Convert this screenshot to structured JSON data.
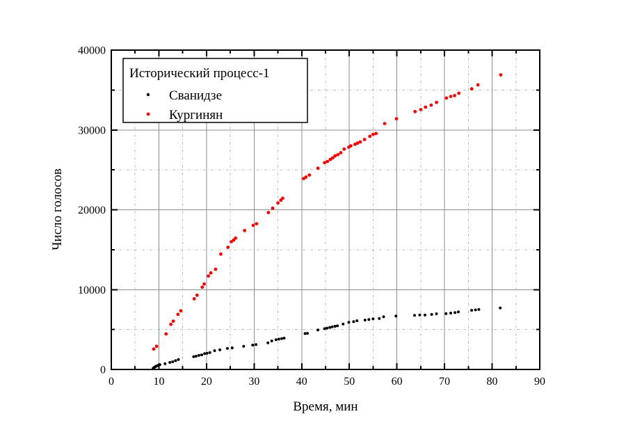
{
  "chart_data": {
    "type": "scatter",
    "legend_title": "Исторический процесс-1",
    "xlabel": "Время, мин",
    "ylabel": "Число голосов",
    "xlim": [
      0,
      90
    ],
    "ylim": [
      0,
      40000
    ],
    "x_major_step": 10,
    "x_minor_step": 5,
    "y_major_step": 10000,
    "y_minor_step": 5000,
    "x_tick_labels": [
      "0",
      "10",
      "20",
      "30",
      "40",
      "50",
      "60",
      "70",
      "80",
      "90"
    ],
    "y_tick_labels": [
      "0",
      "10000",
      "20000",
      "30000",
      "40000"
    ],
    "grid": {
      "on": true,
      "major_color": "#8c8c8c",
      "minor_color": "#c0c0c0",
      "minor_dash": "4 3 1 3"
    },
    "frame_color": "#000000",
    "legend_position": "top-left",
    "series": [
      {
        "name": "Сванидзе",
        "color": "#000000",
        "marker": "circle",
        "marker_radius": 2.0,
        "points": [
          [
            8.8,
            150
          ],
          [
            9.0,
            250
          ],
          [
            9.2,
            330
          ],
          [
            9.4,
            400
          ],
          [
            9.6,
            460
          ],
          [
            9.9,
            520
          ],
          [
            10.2,
            600
          ],
          [
            11.3,
            720
          ],
          [
            12.3,
            880
          ],
          [
            12.9,
            960
          ],
          [
            13.5,
            1100
          ],
          [
            14.1,
            1250
          ],
          [
            17.3,
            1600
          ],
          [
            17.8,
            1660
          ],
          [
            18.4,
            1770
          ],
          [
            19.0,
            1830
          ],
          [
            19.6,
            1980
          ],
          [
            20.1,
            2030
          ],
          [
            20.7,
            2120
          ],
          [
            21.7,
            2350
          ],
          [
            22.8,
            2470
          ],
          [
            24.4,
            2640
          ],
          [
            25.4,
            2700
          ],
          [
            27.8,
            2900
          ],
          [
            29.7,
            3050
          ],
          [
            30.4,
            3110
          ],
          [
            32.9,
            3340
          ],
          [
            33.7,
            3570
          ],
          [
            34.6,
            3720
          ],
          [
            35.2,
            3800
          ],
          [
            35.8,
            3870
          ],
          [
            36.3,
            3920
          ],
          [
            40.7,
            4500
          ],
          [
            41.2,
            4520
          ],
          [
            43.4,
            4940
          ],
          [
            44.8,
            5110
          ],
          [
            45.3,
            5180
          ],
          [
            45.9,
            5260
          ],
          [
            46.4,
            5330
          ],
          [
            47.0,
            5400
          ],
          [
            47.5,
            5460
          ],
          [
            48.7,
            5690
          ],
          [
            49.9,
            5900
          ],
          [
            50.9,
            5990
          ],
          [
            51.6,
            6100
          ],
          [
            53.3,
            6190
          ],
          [
            54.1,
            6250
          ],
          [
            55.0,
            6340
          ],
          [
            56.3,
            6390
          ],
          [
            57.2,
            6600
          ],
          [
            59.8,
            6690
          ],
          [
            63.7,
            6770
          ],
          [
            64.8,
            6820
          ],
          [
            65.9,
            6820
          ],
          [
            67.3,
            6890
          ],
          [
            68.3,
            6970
          ],
          [
            70.3,
            7000
          ],
          [
            71.3,
            7060
          ],
          [
            72.2,
            7120
          ],
          [
            72.9,
            7210
          ],
          [
            75.7,
            7410
          ],
          [
            76.5,
            7460
          ],
          [
            77.2,
            7520
          ],
          [
            81.7,
            7700
          ]
        ]
      },
      {
        "name": "Кургинян",
        "color": "#ff0000",
        "marker": "circle",
        "marker_radius": 2.4,
        "points": [
          [
            8.9,
            2550
          ],
          [
            9.5,
            2900
          ],
          [
            11.5,
            4450
          ],
          [
            12.5,
            5650
          ],
          [
            13.0,
            6050
          ],
          [
            14.0,
            6900
          ],
          [
            14.6,
            7350
          ],
          [
            17.4,
            8850
          ],
          [
            18.0,
            9300
          ],
          [
            19.1,
            10300
          ],
          [
            19.5,
            10700
          ],
          [
            20.4,
            11700
          ],
          [
            20.9,
            12100
          ],
          [
            21.9,
            12550
          ],
          [
            23.0,
            14450
          ],
          [
            24.5,
            15300
          ],
          [
            25.2,
            16000
          ],
          [
            25.7,
            16200
          ],
          [
            26.1,
            16450
          ],
          [
            28.0,
            17400
          ],
          [
            29.8,
            18050
          ],
          [
            30.5,
            18250
          ],
          [
            33.0,
            19650
          ],
          [
            33.9,
            20200
          ],
          [
            35.0,
            20850
          ],
          [
            35.6,
            21200
          ],
          [
            36.0,
            21450
          ],
          [
            40.4,
            23900
          ],
          [
            40.9,
            24100
          ],
          [
            41.6,
            24350
          ],
          [
            43.4,
            25200
          ],
          [
            44.8,
            25900
          ],
          [
            45.4,
            26050
          ],
          [
            46.0,
            26300
          ],
          [
            46.5,
            26500
          ],
          [
            47.0,
            26750
          ],
          [
            47.6,
            26900
          ],
          [
            48.2,
            27150
          ],
          [
            48.9,
            27600
          ],
          [
            49.9,
            27850
          ],
          [
            50.3,
            28000
          ],
          [
            51.2,
            28200
          ],
          [
            51.7,
            28350
          ],
          [
            52.3,
            28500
          ],
          [
            53.2,
            28800
          ],
          [
            54.3,
            29200
          ],
          [
            55.0,
            29450
          ],
          [
            55.6,
            29550
          ],
          [
            57.4,
            30800
          ],
          [
            59.9,
            31400
          ],
          [
            63.8,
            32300
          ],
          [
            65.0,
            32550
          ],
          [
            66.0,
            32850
          ],
          [
            67.2,
            33100
          ],
          [
            68.3,
            33450
          ],
          [
            70.4,
            34000
          ],
          [
            71.3,
            34200
          ],
          [
            72.1,
            34300
          ],
          [
            73.0,
            34600
          ],
          [
            75.7,
            35150
          ],
          [
            77.0,
            35650
          ],
          [
            81.8,
            36900
          ]
        ]
      }
    ]
  }
}
